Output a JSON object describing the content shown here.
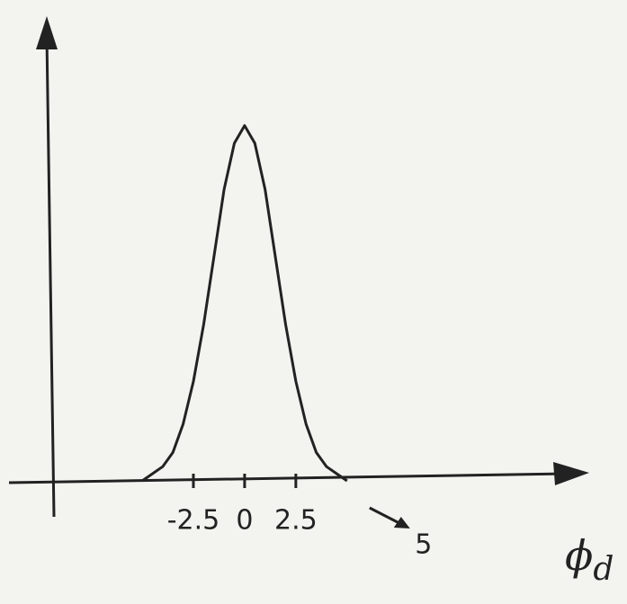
{
  "chart_data": {
    "type": "line",
    "x": [
      -5,
      -4.5,
      -4,
      -3.5,
      -3,
      -2.5,
      -2,
      -1.5,
      -1,
      -0.5,
      0,
      0.5,
      1,
      1.5,
      2,
      2.5,
      3,
      3.5,
      4,
      4.5,
      5
    ],
    "values": [
      0,
      0.02,
      0.04,
      0.08,
      0.16,
      0.28,
      0.44,
      0.63,
      0.82,
      0.95,
      1,
      0.95,
      0.82,
      0.63,
      0.44,
      0.28,
      0.16,
      0.08,
      0.04,
      0.02,
      0
    ],
    "color": "#222222",
    "xlim": [
      -11.5,
      16.6
    ],
    "ylim": [
      0,
      1.29
    ],
    "xticks": [
      -2.5,
      0,
      2.5
    ],
    "xlabel": {
      "symbol": "ϕ",
      "subscript": "d"
    },
    "annotations": [
      {
        "text": "5",
        "x": 5
      }
    ]
  }
}
